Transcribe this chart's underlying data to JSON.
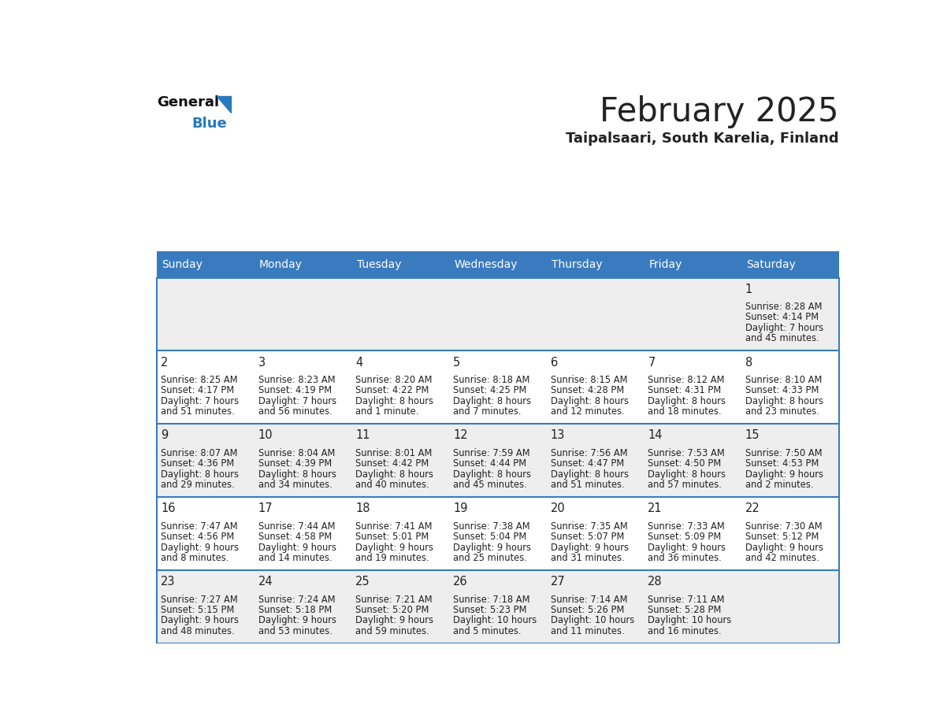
{
  "title": "February 2025",
  "subtitle": "Taipalsaari, South Karelia, Finland",
  "header_bg": "#3a7bbf",
  "header_text": "#ffffff",
  "row_bg_odd": "#eeeeee",
  "row_bg_even": "#ffffff",
  "border_color": "#3a7bbf",
  "text_color": "#222222",
  "days_of_week": [
    "Sunday",
    "Monday",
    "Tuesday",
    "Wednesday",
    "Thursday",
    "Friday",
    "Saturday"
  ],
  "logo_general_color": "#111111",
  "logo_blue_color": "#2979be",
  "calendar_data": {
    "1": {
      "sunrise": "8:28 AM",
      "sunset": "4:14 PM",
      "daylight_l1": "Daylight: 7 hours",
      "daylight_l2": "and 45 minutes."
    },
    "2": {
      "sunrise": "8:25 AM",
      "sunset": "4:17 PM",
      "daylight_l1": "Daylight: 7 hours",
      "daylight_l2": "and 51 minutes."
    },
    "3": {
      "sunrise": "8:23 AM",
      "sunset": "4:19 PM",
      "daylight_l1": "Daylight: 7 hours",
      "daylight_l2": "and 56 minutes."
    },
    "4": {
      "sunrise": "8:20 AM",
      "sunset": "4:22 PM",
      "daylight_l1": "Daylight: 8 hours",
      "daylight_l2": "and 1 minute."
    },
    "5": {
      "sunrise": "8:18 AM",
      "sunset": "4:25 PM",
      "daylight_l1": "Daylight: 8 hours",
      "daylight_l2": "and 7 minutes."
    },
    "6": {
      "sunrise": "8:15 AM",
      "sunset": "4:28 PM",
      "daylight_l1": "Daylight: 8 hours",
      "daylight_l2": "and 12 minutes."
    },
    "7": {
      "sunrise": "8:12 AM",
      "sunset": "4:31 PM",
      "daylight_l1": "Daylight: 8 hours",
      "daylight_l2": "and 18 minutes."
    },
    "8": {
      "sunrise": "8:10 AM",
      "sunset": "4:33 PM",
      "daylight_l1": "Daylight: 8 hours",
      "daylight_l2": "and 23 minutes."
    },
    "9": {
      "sunrise": "8:07 AM",
      "sunset": "4:36 PM",
      "daylight_l1": "Daylight: 8 hours",
      "daylight_l2": "and 29 minutes."
    },
    "10": {
      "sunrise": "8:04 AM",
      "sunset": "4:39 PM",
      "daylight_l1": "Daylight: 8 hours",
      "daylight_l2": "and 34 minutes."
    },
    "11": {
      "sunrise": "8:01 AM",
      "sunset": "4:42 PM",
      "daylight_l1": "Daylight: 8 hours",
      "daylight_l2": "and 40 minutes."
    },
    "12": {
      "sunrise": "7:59 AM",
      "sunset": "4:44 PM",
      "daylight_l1": "Daylight: 8 hours",
      "daylight_l2": "and 45 minutes."
    },
    "13": {
      "sunrise": "7:56 AM",
      "sunset": "4:47 PM",
      "daylight_l1": "Daylight: 8 hours",
      "daylight_l2": "and 51 minutes."
    },
    "14": {
      "sunrise": "7:53 AM",
      "sunset": "4:50 PM",
      "daylight_l1": "Daylight: 8 hours",
      "daylight_l2": "and 57 minutes."
    },
    "15": {
      "sunrise": "7:50 AM",
      "sunset": "4:53 PM",
      "daylight_l1": "Daylight: 9 hours",
      "daylight_l2": "and 2 minutes."
    },
    "16": {
      "sunrise": "7:47 AM",
      "sunset": "4:56 PM",
      "daylight_l1": "Daylight: 9 hours",
      "daylight_l2": "and 8 minutes."
    },
    "17": {
      "sunrise": "7:44 AM",
      "sunset": "4:58 PM",
      "daylight_l1": "Daylight: 9 hours",
      "daylight_l2": "and 14 minutes."
    },
    "18": {
      "sunrise": "7:41 AM",
      "sunset": "5:01 PM",
      "daylight_l1": "Daylight: 9 hours",
      "daylight_l2": "and 19 minutes."
    },
    "19": {
      "sunrise": "7:38 AM",
      "sunset": "5:04 PM",
      "daylight_l1": "Daylight: 9 hours",
      "daylight_l2": "and 25 minutes."
    },
    "20": {
      "sunrise": "7:35 AM",
      "sunset": "5:07 PM",
      "daylight_l1": "Daylight: 9 hours",
      "daylight_l2": "and 31 minutes."
    },
    "21": {
      "sunrise": "7:33 AM",
      "sunset": "5:09 PM",
      "daylight_l1": "Daylight: 9 hours",
      "daylight_l2": "and 36 minutes."
    },
    "22": {
      "sunrise": "7:30 AM",
      "sunset": "5:12 PM",
      "daylight_l1": "Daylight: 9 hours",
      "daylight_l2": "and 42 minutes."
    },
    "23": {
      "sunrise": "7:27 AM",
      "sunset": "5:15 PM",
      "daylight_l1": "Daylight: 9 hours",
      "daylight_l2": "and 48 minutes."
    },
    "24": {
      "sunrise": "7:24 AM",
      "sunset": "5:18 PM",
      "daylight_l1": "Daylight: 9 hours",
      "daylight_l2": "and 53 minutes."
    },
    "25": {
      "sunrise": "7:21 AM",
      "sunset": "5:20 PM",
      "daylight_l1": "Daylight: 9 hours",
      "daylight_l2": "and 59 minutes."
    },
    "26": {
      "sunrise": "7:18 AM",
      "sunset": "5:23 PM",
      "daylight_l1": "Daylight: 10 hours",
      "daylight_l2": "and 5 minutes."
    },
    "27": {
      "sunrise": "7:14 AM",
      "sunset": "5:26 PM",
      "daylight_l1": "Daylight: 10 hours",
      "daylight_l2": "and 11 minutes."
    },
    "28": {
      "sunrise": "7:11 AM",
      "sunset": "5:28 PM",
      "daylight_l1": "Daylight: 10 hours",
      "daylight_l2": "and 16 minutes."
    }
  }
}
